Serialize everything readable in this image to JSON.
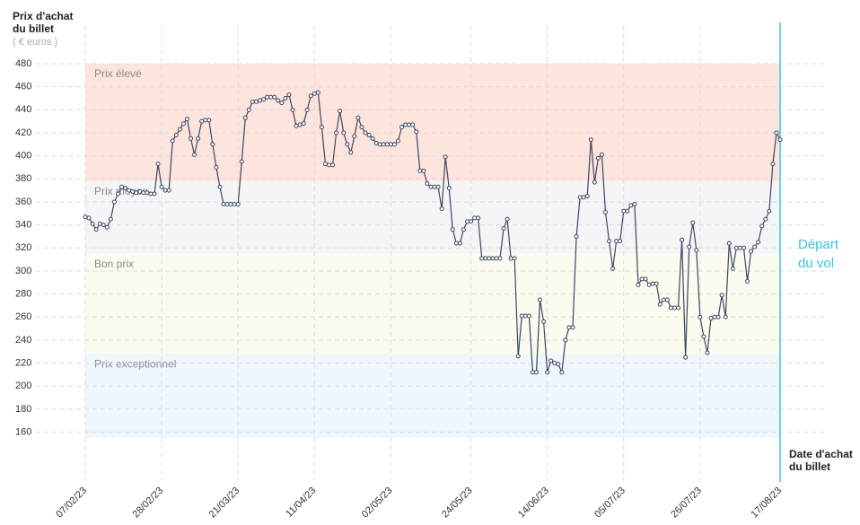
{
  "chart_data": {
    "type": "line",
    "y_label": "Prix d'achat du billet",
    "y_unit": "( € euros )",
    "x_label": "Date d'achat du billet",
    "annotation": {
      "text": "Départ du vol",
      "x": "17/08/23",
      "color": "#36c6e0"
    },
    "bands": [
      {
        "name": "Prix élevé",
        "from": 378,
        "to": 480,
        "color": "#fde4dd"
      },
      {
        "name": "Prix moyen",
        "from": 315,
        "to": 378,
        "color": "#f5f5f7"
      },
      {
        "name": "Bon prix",
        "from": 228,
        "to": 315,
        "color": "#fcfbef"
      },
      {
        "name": "Prix exceptionnel",
        "from": 155,
        "to": 228,
        "color": "#eff7fc"
      }
    ],
    "color": "#3d4760",
    "xlim": [
      "07/02/23",
      "17/08/23"
    ],
    "xticks": [
      "07/02/23",
      "28/02/23",
      "21/03/23",
      "11/04/23",
      "02/05/23",
      "24/05/23",
      "14/06/23",
      "05/07/23",
      "26/07/23",
      "17/08/23"
    ],
    "ylim": [
      155,
      480
    ],
    "yticks": [
      480,
      460,
      440,
      420,
      400,
      380,
      360,
      340,
      320,
      300,
      280,
      260,
      240,
      220,
      200,
      180,
      160
    ],
    "grid": true,
    "x": [
      "07/02/23",
      "08/02/23",
      "09/02/23",
      "10/02/23",
      "11/02/23",
      "12/02/23",
      "13/02/23",
      "14/02/23",
      "15/02/23",
      "16/02/23",
      "17/02/23",
      "18/02/23",
      "19/02/23",
      "20/02/23",
      "21/02/23",
      "22/02/23",
      "23/02/23",
      "24/02/23",
      "25/02/23",
      "26/02/23",
      "27/02/23",
      "28/02/23",
      "01/03/23",
      "02/03/23",
      "03/03/23",
      "04/03/23",
      "05/03/23",
      "06/03/23",
      "07/03/23",
      "08/03/23",
      "09/03/23",
      "10/03/23",
      "11/03/23",
      "12/03/23",
      "13/03/23",
      "14/03/23",
      "15/03/23",
      "16/03/23",
      "17/03/23",
      "18/03/23",
      "19/03/23",
      "20/03/23",
      "21/03/23",
      "22/03/23",
      "23/03/23",
      "24/03/23",
      "25/03/23",
      "26/03/23",
      "27/03/23",
      "28/03/23",
      "29/03/23",
      "30/03/23",
      "31/03/23",
      "01/04/23",
      "02/04/23",
      "03/04/23",
      "04/04/23",
      "05/04/23",
      "06/04/23",
      "07/04/23",
      "08/04/23",
      "09/04/23",
      "10/04/23",
      "11/04/23",
      "12/04/23",
      "13/04/23",
      "14/04/23",
      "15/04/23",
      "16/04/23",
      "17/04/23",
      "18/04/23",
      "19/04/23",
      "20/04/23",
      "21/04/23",
      "22/04/23",
      "23/04/23",
      "24/04/23",
      "25/04/23",
      "26/04/23",
      "27/04/23",
      "28/04/23",
      "29/04/23",
      "30/04/23",
      "01/05/23",
      "02/05/23",
      "03/05/23",
      "04/05/23",
      "05/05/23",
      "06/05/23",
      "07/05/23",
      "08/05/23",
      "09/05/23",
      "10/05/23",
      "11/05/23",
      "12/05/23",
      "13/05/23",
      "14/05/23",
      "15/05/23",
      "16/05/23",
      "17/05/23",
      "18/05/23",
      "19/05/23",
      "20/05/23",
      "21/05/23",
      "22/05/23",
      "23/05/23",
      "24/05/23",
      "25/05/23",
      "26/05/23",
      "27/05/23",
      "28/05/23",
      "29/05/23",
      "30/05/23",
      "31/05/23",
      "01/06/23",
      "02/06/23",
      "03/06/23",
      "04/06/23",
      "05/06/23",
      "06/06/23",
      "07/06/23",
      "08/06/23",
      "09/06/23",
      "10/06/23",
      "11/06/23",
      "12/06/23",
      "13/06/23",
      "14/06/23",
      "15/06/23",
      "16/06/23",
      "17/06/23",
      "18/06/23",
      "19/06/23",
      "20/06/23",
      "21/06/23",
      "22/06/23",
      "23/06/23",
      "24/06/23",
      "25/06/23",
      "26/06/23",
      "27/06/23",
      "28/06/23",
      "29/06/23",
      "30/06/23",
      "01/07/23",
      "02/07/23",
      "03/07/23",
      "04/07/23",
      "05/07/23",
      "06/07/23",
      "07/07/23",
      "08/07/23",
      "09/07/23",
      "10/07/23",
      "11/07/23",
      "12/07/23",
      "13/07/23",
      "14/07/23",
      "15/07/23",
      "16/07/23",
      "17/07/23",
      "18/07/23",
      "19/07/23",
      "20/07/23",
      "21/07/23",
      "22/07/23",
      "23/07/23",
      "24/07/23",
      "25/07/23",
      "26/07/23",
      "27/07/23",
      "28/07/23",
      "29/07/23",
      "30/07/23",
      "31/07/23",
      "01/08/23",
      "02/08/23",
      "03/08/23",
      "04/08/23",
      "05/08/23",
      "06/08/23",
      "07/08/23",
      "08/08/23",
      "09/08/23",
      "10/08/23",
      "11/08/23",
      "12/08/23",
      "13/08/23",
      "14/08/23",
      "15/08/23",
      "16/08/23",
      "17/08/23"
    ],
    "values": [
      347,
      346,
      341,
      336,
      341,
      340,
      338,
      345,
      360,
      367,
      373,
      372,
      370,
      369,
      368,
      369,
      368,
      368,
      367,
      367,
      393,
      373,
      370,
      370,
      413,
      418,
      423,
      428,
      432,
      415,
      401,
      415,
      430,
      431,
      431,
      410,
      390,
      373,
      358,
      358,
      358,
      358,
      358,
      395,
      433,
      440,
      447,
      447,
      448,
      449,
      451,
      451,
      451,
      448,
      446,
      450,
      453,
      440,
      426,
      427,
      428,
      440,
      452,
      454,
      455,
      425,
      393,
      392,
      392,
      420,
      439,
      420,
      410,
      403,
      417,
      433,
      425,
      420,
      418,
      415,
      411,
      410,
      410,
      410,
      410,
      410,
      413,
      425,
      427,
      427,
      427,
      421,
      387,
      387,
      376,
      373,
      373,
      373,
      354,
      399,
      372,
      336,
      324,
      324,
      336,
      343,
      343,
      346,
      346,
      311,
      311,
      311,
      311,
      311,
      311,
      337,
      345,
      311,
      311,
      226,
      261,
      261,
      261,
      212,
      212,
      275,
      256,
      212,
      222,
      220,
      219,
      212,
      240,
      251,
      251,
      330,
      364,
      364,
      365,
      414,
      377,
      398,
      401,
      351,
      326,
      302,
      326,
      326,
      352,
      352,
      357,
      358,
      288,
      293,
      293,
      288,
      289,
      289,
      271,
      275,
      275,
      268,
      268,
      268,
      327,
      225,
      321,
      342,
      318,
      260,
      243,
      229,
      259,
      260,
      260,
      279,
      260,
      324,
      302,
      320,
      320,
      320,
      291,
      317,
      321,
      325,
      339,
      345,
      352,
      393,
      420,
      414
    ]
  }
}
